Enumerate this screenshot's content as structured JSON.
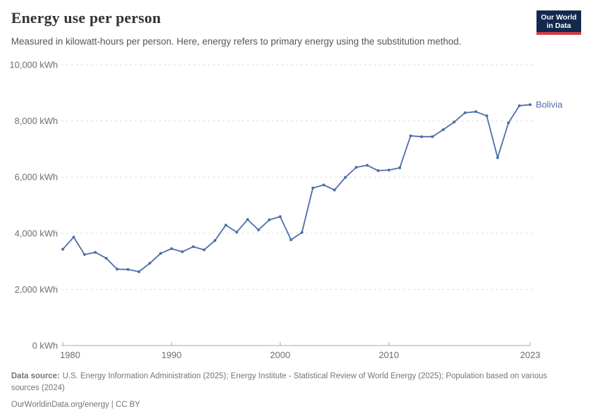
{
  "header": {
    "title": "Energy use per person",
    "subtitle": "Measured in kilowatt-hours per person. Here, energy refers to primary energy using the substitution method.",
    "logo": {
      "line1": "Our World",
      "line2": "in Data",
      "background_color": "#12294d",
      "accent_color": "#d13d43"
    }
  },
  "chart_data": {
    "type": "line",
    "title": "Energy use per person",
    "xlabel": "",
    "ylabel": "kWh",
    "xlim": [
      1980,
      2023
    ],
    "ylim": [
      0,
      10000
    ],
    "grid": true,
    "legend_position": "end-of-line",
    "yticks": [
      0,
      2000,
      4000,
      6000,
      8000,
      10000
    ],
    "ytick_labels": [
      "0 kWh",
      "2,000 kWh",
      "4,000 kWh",
      "6,000 kWh",
      "8,000 kWh",
      "10,000 kWh"
    ],
    "xticks": [
      1980,
      1990,
      2000,
      2010,
      2023
    ],
    "series": [
      {
        "name": "Bolivia",
        "color": "#4c6ea9",
        "x": [
          1980,
          1981,
          1982,
          1983,
          1984,
          1985,
          1986,
          1987,
          1988,
          1989,
          1990,
          1991,
          1992,
          1993,
          1994,
          1995,
          1996,
          1997,
          1998,
          1999,
          2000,
          2001,
          2002,
          2003,
          2004,
          2005,
          2006,
          2007,
          2008,
          2009,
          2010,
          2011,
          2012,
          2013,
          2014,
          2015,
          2016,
          2017,
          2018,
          2019,
          2020,
          2021,
          2022,
          2023
        ],
        "values": [
          3430,
          3860,
          3240,
          3320,
          3110,
          2720,
          2710,
          2630,
          2930,
          3280,
          3450,
          3340,
          3520,
          3410,
          3740,
          4290,
          4040,
          4490,
          4120,
          4480,
          4590,
          3770,
          4030,
          5610,
          5720,
          5540,
          5990,
          6350,
          6420,
          6230,
          6250,
          6330,
          7470,
          7440,
          7440,
          7690,
          7960,
          8290,
          8330,
          8180,
          6690,
          7930,
          8540,
          8580
        ]
      }
    ]
  },
  "footer": {
    "source_label": "Data source:",
    "source_text": "U.S. Energy Information Administration (2025); Energy Institute - Statistical Review of World Energy (2025); Population based on various sources (2024)",
    "link_text": "OurWorldinData.org/energy | CC BY"
  }
}
